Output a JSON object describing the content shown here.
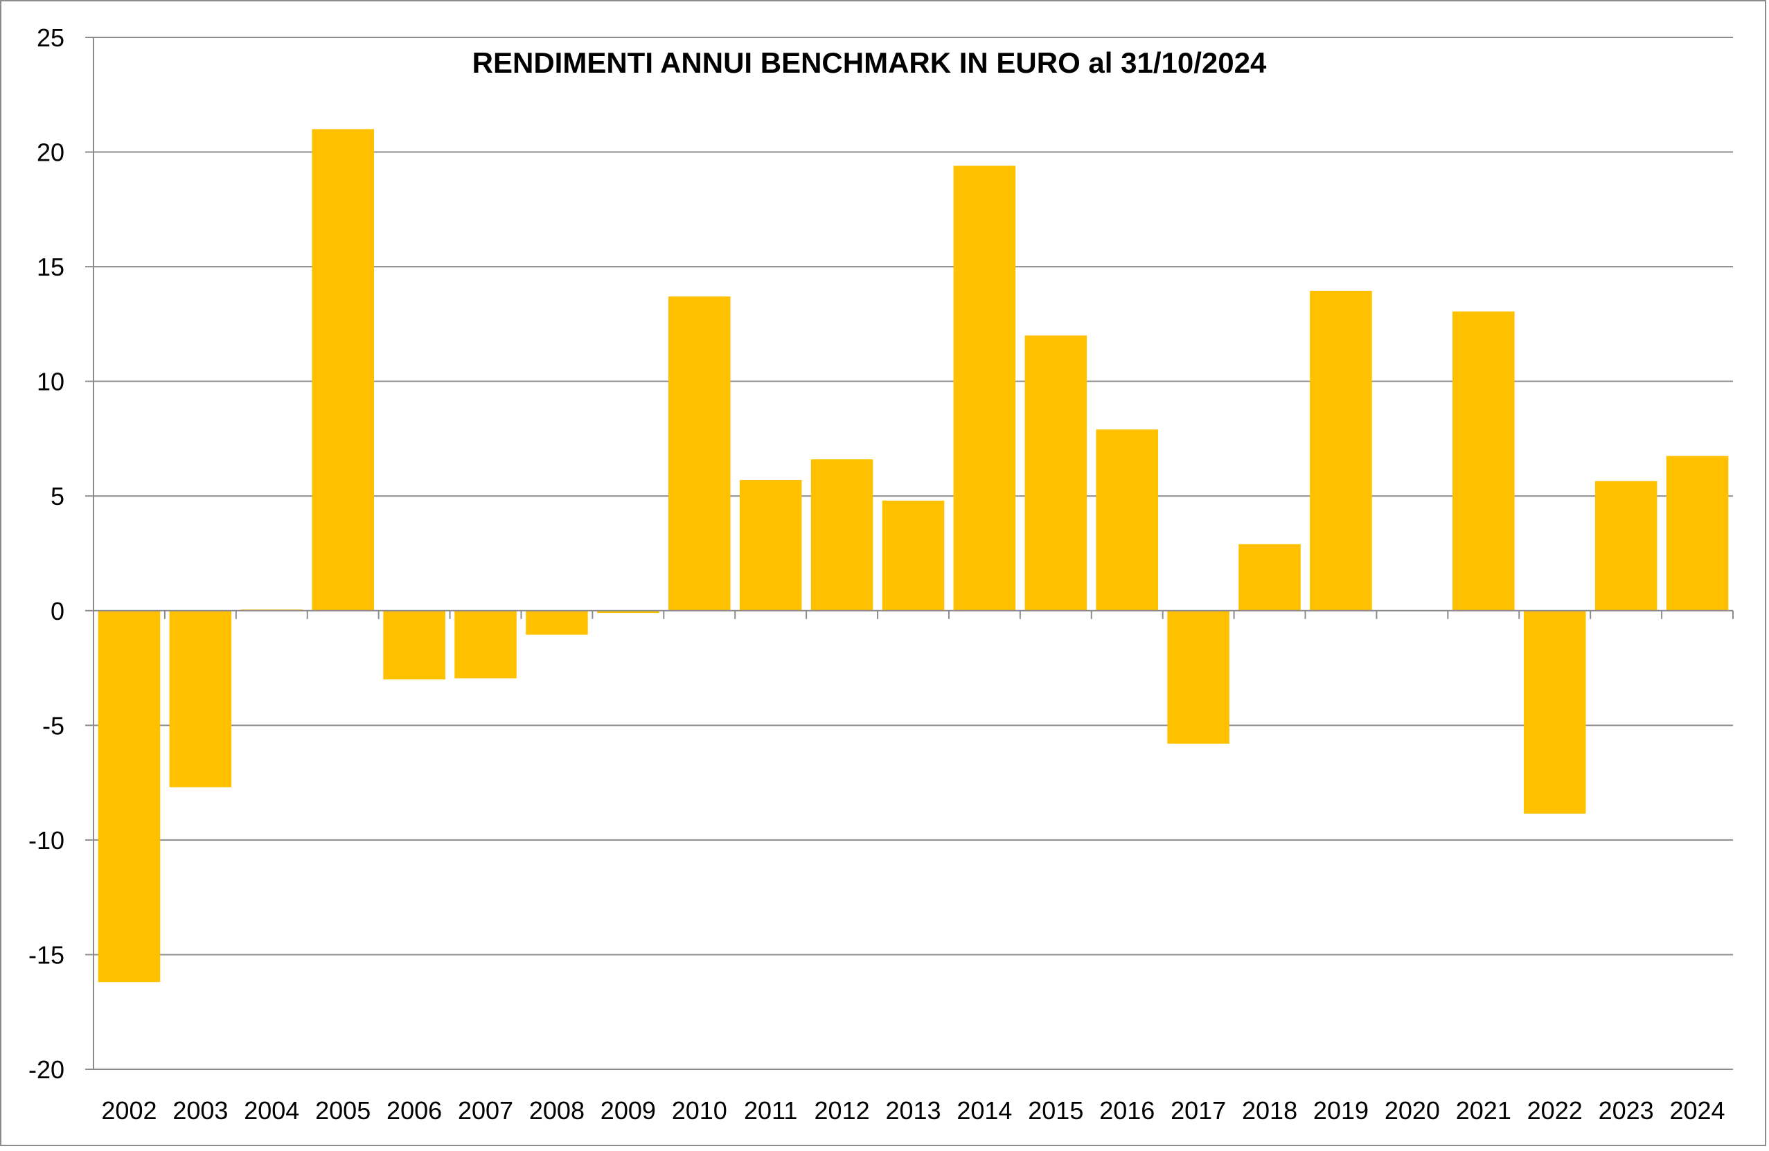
{
  "chart_data": {
    "type": "bar",
    "title": "RENDIMENTI ANNUI BENCHMARK IN EURO al 31/10/2024",
    "xlabel": "",
    "ylabel": "",
    "ylim": [
      -20,
      25
    ],
    "yticks": [
      "25",
      "20",
      "15",
      "10",
      "5",
      "0",
      "-5",
      "-10",
      "-15",
      "-20"
    ],
    "ytick_values": [
      25,
      20,
      15,
      10,
      5,
      0,
      -5,
      -10,
      -15,
      -20
    ],
    "grid": true,
    "legend": "none",
    "bar_color": "#FFC000",
    "grid_color": "#8c8c8c",
    "categories": [
      "2002",
      "2003",
      "2004",
      "2005",
      "2006",
      "2007",
      "2008",
      "2009",
      "2010",
      "2011",
      "2012",
      "2013",
      "2014",
      "2015",
      "2016",
      "2017",
      "2018",
      "2019",
      "2020",
      "2021",
      "2022",
      "2023",
      "2024"
    ],
    "values": [
      -16.2,
      -7.7,
      0.05,
      21.0,
      -3.0,
      -2.95,
      -1.05,
      -0.1,
      13.7,
      5.7,
      6.6,
      4.8,
      19.4,
      12.0,
      7.9,
      -5.8,
      2.9,
      13.95,
      0.0,
      13.05,
      -8.85,
      5.65,
      6.75
    ]
  }
}
